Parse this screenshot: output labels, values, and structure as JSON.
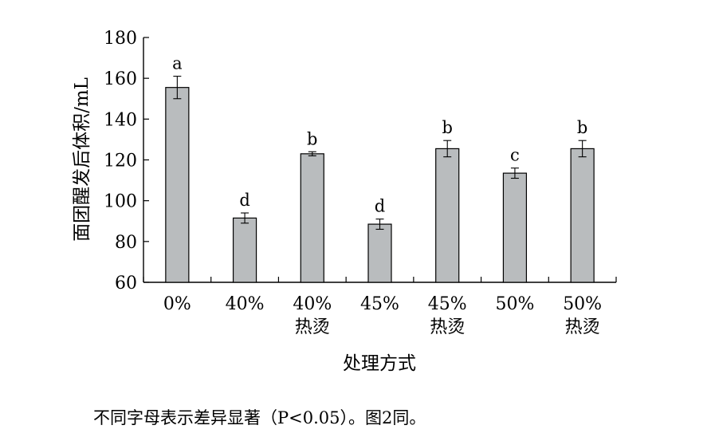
{
  "chart_data": {
    "type": "bar",
    "ylabel": "面团醒发后体积/mL",
    "xlabel": "处理方式",
    "ylim": [
      60,
      180
    ],
    "yticks": [
      60,
      80,
      100,
      120,
      140,
      160,
      180
    ],
    "grid": false,
    "categories": [
      {
        "line1": "0%",
        "line2": ""
      },
      {
        "line1": "40%",
        "line2": ""
      },
      {
        "line1": "40%",
        "line2": "热烫"
      },
      {
        "line1": "45%",
        "line2": ""
      },
      {
        "line1": "45%",
        "line2": "热烫"
      },
      {
        "line1": "50%",
        "line2": ""
      },
      {
        "line1": "50%",
        "line2": "热烫"
      }
    ],
    "values": [
      155.5,
      91.5,
      123,
      88.5,
      125.5,
      113.5,
      125.5
    ],
    "errors": [
      5.5,
      2.5,
      1,
      2.5,
      4,
      2.5,
      4
    ],
    "significance": [
      "a",
      "d",
      "b",
      "d",
      "b",
      "c",
      "b"
    ],
    "bar_color": "#b9bcbe",
    "note": "不同字母表示差异显著（P<0.05）。图2同。"
  }
}
